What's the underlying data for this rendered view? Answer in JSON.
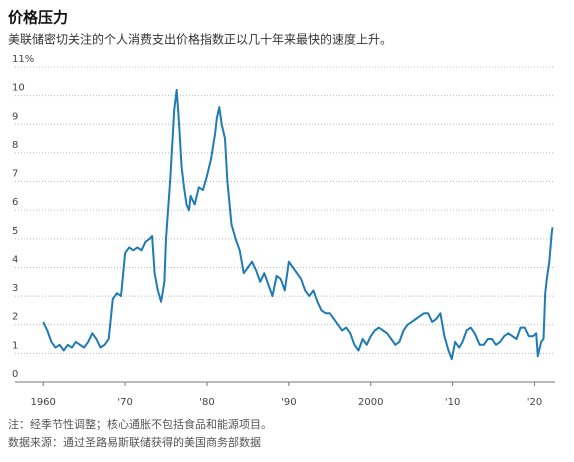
{
  "chart_data": {
    "type": "line",
    "title": "价格压力",
    "subtitle": "美联储密切关注的个人消费支出价格指数正以几十年来最快的速度上升。",
    "notes": [
      "注：经季节性调整；核心通胀不包括食品和能源项目。",
      "数据来源：通过圣路易斯联储获得的美国商务部数据"
    ],
    "color": "#1f7bb3",
    "grid": true,
    "xlim": [
      1959,
      2022.5
    ],
    "ylim": [
      0,
      11
    ],
    "xticks": [
      1960,
      {
        "value": 1970,
        "label": "'70"
      },
      {
        "value": 1980,
        "label": "'80"
      },
      {
        "value": 1990,
        "label": "'90"
      },
      2000,
      {
        "value": 2010,
        "label": "'10"
      },
      {
        "value": 2020,
        "label": "'20"
      }
    ],
    "yticks": [
      0,
      1,
      2,
      3,
      4,
      5,
      6,
      7,
      8,
      9,
      10,
      {
        "value": 11,
        "label": "11%"
      }
    ],
    "x": [
      1960,
      1960.5,
      1961,
      1961.5,
      1962,
      1962.5,
      1963,
      1963.5,
      1964,
      1964.5,
      1965,
      1965.5,
      1966,
      1966.5,
      1967,
      1967.5,
      1968,
      1968.5,
      1969,
      1969.5,
      1970,
      1970.5,
      1971,
      1971.5,
      1972,
      1972.5,
      1973,
      1973.3,
      1973.6,
      1974,
      1974.4,
      1974.8,
      1975,
      1975.5,
      1975.8,
      1976,
      1976.3,
      1976.6,
      1976.9,
      1977.2,
      1977.5,
      1977.8,
      1978,
      1978.5,
      1979,
      1979.5,
      1980,
      1980.5,
      1981,
      1981.2,
      1981.5,
      1981.8,
      1982.2,
      1982.5,
      1983,
      1983.5,
      1984,
      1984.5,
      1985,
      1985.5,
      1986,
      1986.5,
      1987,
      1987.5,
      1988,
      1988.5,
      1989,
      1989.5,
      1990,
      1990.5,
      1991,
      1991.5,
      1992,
      1992.5,
      1993,
      1993.5,
      1994,
      1994.5,
      1995,
      1995.5,
      1996,
      1996.5,
      1997,
      1997.5,
      1998,
      1998.5,
      1999,
      1999.5,
      2000,
      2000.5,
      2001,
      2001.5,
      2002,
      2002.5,
      2003,
      2003.5,
      2004,
      2004.5,
      2005,
      2005.5,
      2006,
      2006.5,
      2007,
      2007.5,
      2008,
      2008.5,
      2009,
      2009.5,
      2009.9,
      2010.3,
      2010.8,
      2011.2,
      2011.7,
      2012.2,
      2012.7,
      2013.3,
      2013.8,
      2014.3,
      2014.8,
      2015.3,
      2015.8,
      2016.3,
      2016.8,
      2017.3,
      2017.8,
      2018.3,
      2018.8,
      2019.3,
      2019.8,
      2020.2,
      2020.4,
      2020.8,
      2021.1,
      2021.3,
      2021.5,
      2021.8,
      2022.1,
      2022.2
    ],
    "values": [
      2.1,
      1.8,
      1.4,
      1.2,
      1.3,
      1.1,
      1.3,
      1.2,
      1.4,
      1.3,
      1.2,
      1.4,
      1.7,
      1.5,
      1.2,
      1.3,
      1.5,
      2.9,
      3.1,
      3.0,
      4.5,
      4.7,
      4.6,
      4.7,
      4.6,
      4.9,
      5.0,
      5.1,
      3.8,
      3.2,
      2.8,
      3.5,
      5.0,
      7.0,
      8.5,
      9.5,
      10.2,
      9.0,
      7.5,
      6.8,
      6.2,
      6.0,
      6.5,
      6.2,
      6.8,
      6.7,
      7.2,
      7.8,
      8.7,
      9.2,
      9.6,
      9.0,
      8.5,
      7.0,
      5.5,
      5.0,
      4.6,
      3.8,
      4.0,
      4.2,
      3.9,
      3.5,
      3.8,
      3.4,
      3.0,
      3.7,
      3.6,
      3.2,
      4.2,
      4.0,
      3.8,
      3.6,
      3.2,
      3.0,
      3.2,
      2.8,
      2.5,
      2.4,
      2.4,
      2.2,
      2.0,
      1.8,
      1.9,
      1.7,
      1.3,
      1.1,
      1.5,
      1.3,
      1.6,
      1.8,
      1.9,
      1.8,
      1.7,
      1.5,
      1.3,
      1.4,
      1.8,
      2.0,
      2.1,
      2.2,
      2.3,
      2.4,
      2.4,
      2.1,
      2.2,
      2.4,
      1.6,
      1.1,
      0.8,
      1.4,
      1.2,
      1.4,
      1.8,
      1.9,
      1.7,
      1.3,
      1.3,
      1.5,
      1.5,
      1.3,
      1.4,
      1.6,
      1.7,
      1.6,
      1.5,
      1.9,
      1.9,
      1.6,
      1.6,
      1.7,
      0.9,
      1.4,
      1.5,
      3.1,
      3.6,
      4.2,
      5.2,
      5.4
    ]
  }
}
